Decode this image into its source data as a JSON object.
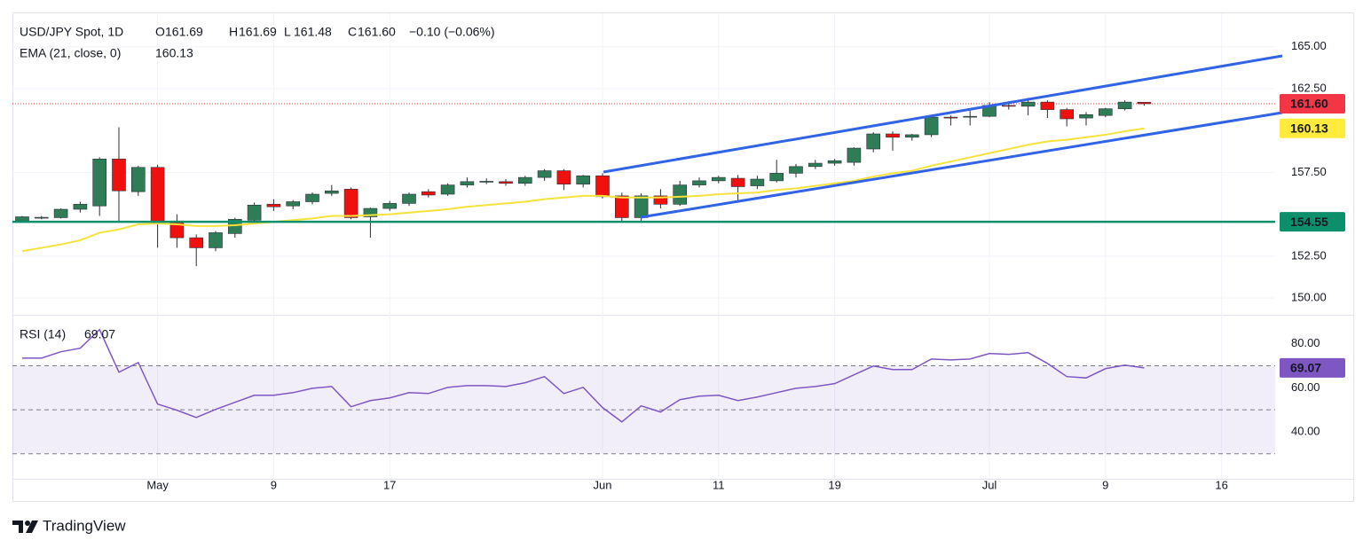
{
  "chart_data": [
    {
      "type": "candlestick",
      "title": "USD/JPY Spot, 1D",
      "ohlc_legend": [
        {
          "label": "O",
          "text": "161.69"
        },
        {
          "label": "H",
          "text": "161.69"
        },
        {
          "label": "L",
          "text": "161.48"
        },
        {
          "label": "C",
          "text": "161.60"
        }
      ],
      "change": "−0.10 (−0.06%)",
      "categories": [
        null,
        null,
        null,
        null,
        null,
        null,
        null,
        "May",
        null,
        null,
        null,
        null,
        null,
        "9",
        null,
        null,
        null,
        null,
        null,
        "17",
        null,
        null,
        null,
        null,
        null,
        null,
        null,
        null,
        null,
        null,
        "Jun",
        null,
        null,
        null,
        null,
        null,
        "11",
        null,
        null,
        null,
        null,
        null,
        "19",
        null,
        null,
        null,
        null,
        null,
        null,
        null,
        "Jul",
        null,
        null,
        null,
        null,
        null,
        "9",
        null,
        null,
        null,
        null,
        null,
        "16",
        null,
        null
      ],
      "open": [
        154.6,
        154.8,
        154.8,
        155.3,
        155.5,
        158.3,
        156.35,
        157.8,
        154.6,
        153.6,
        153.0,
        153.85,
        154.65,
        155.6,
        155.5,
        155.75,
        156.25,
        156.5,
        154.85,
        155.35,
        155.65,
        156.35,
        156.2,
        156.75,
        156.95,
        156.95,
        156.85,
        157.2,
        157.6,
        156.8,
        157.3,
        156.1,
        154.8,
        156.1,
        155.6,
        156.75,
        157.0,
        157.15,
        156.7,
        157.0,
        157.45,
        157.85,
        158.05,
        158.1,
        158.9,
        159.8,
        159.6,
        159.75,
        160.8,
        160.8,
        160.85,
        161.5,
        161.45,
        161.7,
        161.25,
        160.75,
        160.9,
        161.3,
        161.69,
        null,
        null,
        null,
        null,
        null,
        null
      ],
      "high": [
        154.9,
        154.9,
        155.35,
        155.75,
        158.4,
        160.2,
        157.9,
        157.95,
        155.0,
        153.8,
        154.0,
        154.8,
        155.7,
        155.9,
        155.85,
        156.3,
        156.75,
        156.6,
        155.4,
        155.8,
        156.3,
        156.5,
        156.85,
        157.2,
        157.15,
        157.1,
        157.3,
        157.7,
        157.7,
        157.35,
        157.45,
        156.3,
        156.25,
        156.5,
        157.0,
        157.2,
        157.3,
        157.35,
        157.3,
        158.25,
        158.0,
        158.25,
        158.3,
        159.0,
        159.9,
        159.95,
        159.8,
        160.85,
        160.9,
        161.25,
        161.7,
        161.75,
        161.95,
        161.8,
        161.35,
        161.1,
        161.35,
        161.8,
        161.69,
        null,
        null,
        null,
        null,
        null,
        null
      ],
      "low": [
        154.5,
        154.7,
        154.75,
        155.1,
        154.9,
        154.55,
        156.1,
        153.0,
        153.0,
        151.9,
        152.8,
        153.6,
        154.5,
        155.2,
        155.3,
        155.6,
        156.1,
        154.7,
        153.6,
        155.2,
        155.5,
        156.0,
        156.1,
        156.6,
        156.8,
        156.7,
        156.7,
        157.0,
        156.45,
        156.6,
        155.95,
        154.55,
        154.6,
        155.35,
        155.5,
        156.6,
        156.85,
        155.7,
        156.5,
        156.9,
        157.2,
        157.7,
        157.9,
        157.9,
        158.7,
        158.8,
        159.4,
        159.6,
        160.3,
        160.3,
        160.8,
        161.25,
        160.9,
        160.75,
        160.25,
        160.3,
        160.8,
        161.2,
        161.48,
        null,
        null,
        null,
        null,
        null,
        null
      ],
      "close": [
        154.85,
        154.82,
        155.3,
        155.6,
        158.3,
        156.4,
        157.8,
        154.6,
        153.6,
        153.0,
        153.9,
        154.7,
        155.55,
        155.45,
        155.75,
        156.2,
        156.4,
        154.8,
        155.35,
        155.65,
        156.2,
        156.15,
        156.75,
        156.95,
        156.97,
        156.85,
        157.2,
        157.6,
        156.8,
        157.3,
        156.05,
        154.8,
        156.1,
        155.6,
        156.75,
        157.0,
        157.2,
        156.65,
        157.1,
        157.45,
        157.85,
        158.05,
        158.2,
        158.95,
        159.8,
        159.6,
        159.75,
        160.8,
        160.75,
        160.85,
        161.5,
        161.45,
        161.7,
        161.25,
        160.7,
        160.95,
        161.3,
        161.7,
        161.6,
        null,
        null,
        null,
        null,
        null,
        null
      ],
      "up_color": "#2e7d57",
      "down_color": "#f0110f",
      "ema": {
        "name": "EMA (21, close, 0)",
        "color": "#f5e33b",
        "values": [
          152.8,
          153.0,
          153.2,
          153.45,
          153.9,
          154.1,
          154.4,
          154.45,
          154.4,
          154.3,
          154.3,
          154.35,
          154.45,
          154.55,
          154.65,
          154.75,
          154.9,
          154.9,
          154.95,
          155.0,
          155.1,
          155.2,
          155.3,
          155.45,
          155.55,
          155.65,
          155.75,
          155.9,
          156.0,
          156.1,
          156.1,
          156.0,
          156.0,
          156.0,
          156.05,
          156.1,
          156.2,
          156.25,
          156.3,
          156.45,
          156.55,
          156.7,
          156.85,
          157.0,
          157.25,
          157.45,
          157.6,
          157.9,
          158.15,
          158.4,
          158.65,
          158.9,
          159.15,
          159.35,
          159.45,
          159.6,
          159.75,
          159.95,
          160.13,
          null,
          null,
          null,
          null,
          null,
          null
        ]
      },
      "last_price": {
        "value": 161.6,
        "label": "161.60",
        "color": "#f23645"
      },
      "support": {
        "value": 154.55,
        "color": "#0c8f6b"
      },
      "ylim": [
        149,
        167
      ],
      "yticks": [
        {
          "value": 150,
          "label": "150.00"
        },
        {
          "value": 152.5,
          "label": "152.50"
        },
        {
          "value": 157.5,
          "label": "157.50"
        },
        {
          "value": 162.5,
          "label": "162.50"
        },
        {
          "value": 165,
          "label": "165.00"
        }
      ],
      "grid": true
    },
    {
      "type": "line",
      "title": "RSI (14)",
      "color": "#7e57c2",
      "values": [
        73.5,
        73.5,
        76.4,
        78.0,
        86.5,
        67.1,
        71.5,
        52.6,
        49.8,
        46.5,
        50.2,
        53.4,
        56.6,
        56.6,
        57.8,
        59.8,
        60.6,
        51.4,
        54.2,
        55.4,
        57.8,
        57.4,
        60.2,
        61.0,
        61.0,
        60.6,
        62.3,
        65.1,
        57.4,
        60.2,
        51.0,
        44.5,
        51.8,
        49.0,
        54.6,
        56.2,
        56.6,
        54.2,
        55.8,
        57.8,
        59.8,
        60.6,
        61.9,
        65.9,
        69.9,
        68.3,
        68.3,
        73.1,
        72.7,
        73.1,
        75.6,
        75.2,
        76.0,
        71.1,
        65.1,
        64.5,
        68.7,
        70.3,
        69.07,
        null,
        null,
        null,
        null,
        null,
        null
      ],
      "levels": [
        70,
        50,
        30
      ],
      "ylim": [
        19,
        92
      ],
      "yticks": [
        {
          "value": 80,
          "label": "80.00"
        },
        {
          "value": 60,
          "label": "60.00"
        },
        {
          "value": 40,
          "label": "40.00"
        }
      ]
    }
  ],
  "footer": {
    "brand": "TradingView"
  }
}
